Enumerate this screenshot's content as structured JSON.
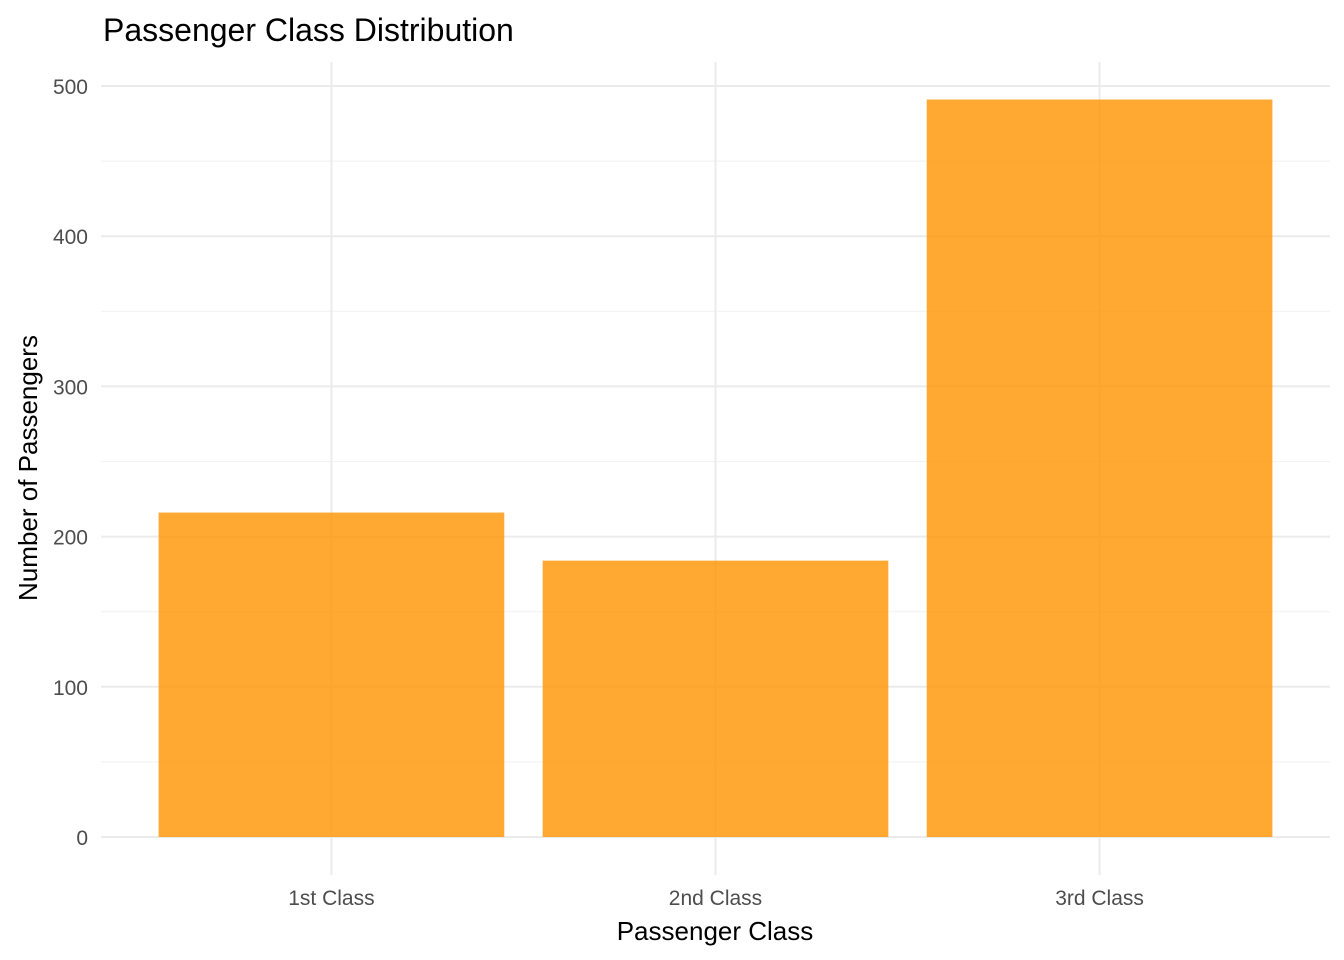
{
  "chart_data": {
    "type": "bar",
    "title": "Passenger Class Distribution",
    "xlabel": "Passenger Class",
    "ylabel": "Number of Passengers",
    "categories": [
      "1st Class",
      "2nd Class",
      "3rd Class"
    ],
    "values": [
      216,
      184,
      491
    ],
    "ylim": [
      0,
      515
    ],
    "yticks": [
      0,
      100,
      200,
      300,
      400,
      500
    ],
    "grid": true,
    "bar_color": "#ff9400",
    "bar_opacity": 0.8
  }
}
